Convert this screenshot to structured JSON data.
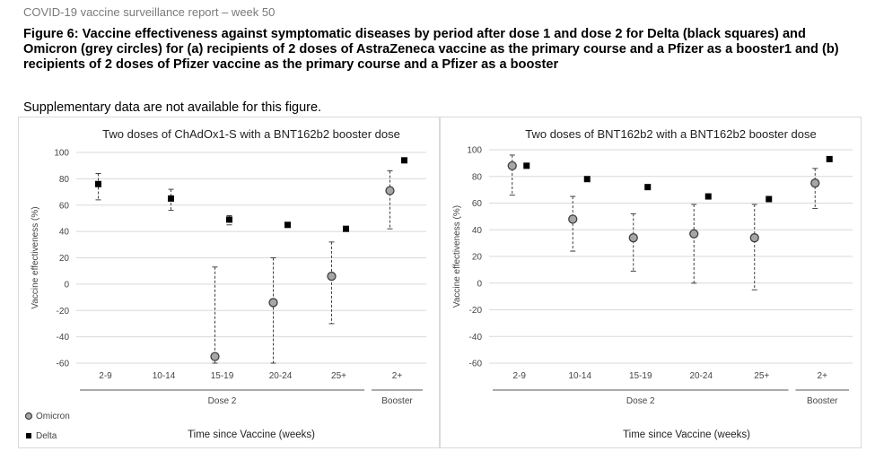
{
  "report_header": "COVID-19 vaccine surveillance report – week 50",
  "figure_title": "Figure 6: Vaccine effectiveness against symptomatic diseases by period after dose 1 and dose 2 for Delta (black squares) and Omicron (grey circles) for (a) recipients of 2 doses of AstraZeneca vaccine as the primary course and a Pfizer as a booster1 and (b) recipients of 2 doses of Pfizer vaccine as the primary course and a Pfizer as a booster",
  "supplementary_note": "Supplementary data are not available for this figure.",
  "colors": {
    "omicron_fill": "#a6a6a6",
    "omicron_stroke": "#404040",
    "delta_fill": "#000000",
    "grid": "#d9d9d9",
    "error_bar": "#404040"
  },
  "chart_data": [
    {
      "type": "scatter",
      "title": "Two doses of ChAdOx1-S with a BNT162b2 booster dose",
      "ylabel": "Vaccine effectiveness (%)",
      "xlabel": "Time since Vaccine (weeks)",
      "ylim": [
        -60,
        100
      ],
      "yticks": [
        -60,
        -40,
        -20,
        0,
        20,
        40,
        60,
        80,
        100
      ],
      "grid": true,
      "categories": [
        "2-9",
        "10-14",
        "15-19",
        "20-24",
        "25+",
        "2+"
      ],
      "groups": [
        {
          "label": "Dose 2",
          "categories": [
            "2-9",
            "10-14",
            "15-19",
            "20-24",
            "25+"
          ]
        },
        {
          "label": "Booster",
          "categories": [
            "2+"
          ]
        }
      ],
      "series": [
        {
          "name": "Omicron",
          "marker": "circle",
          "values": [
            null,
            null,
            -55,
            -14,
            6,
            71
          ],
          "lower": [
            null,
            null,
            -60,
            -60,
            -30,
            42
          ],
          "upper": [
            null,
            null,
            13,
            20,
            32,
            86
          ]
        },
        {
          "name": "Delta",
          "marker": "square",
          "values": [
            76,
            65,
            49,
            45,
            42,
            94
          ],
          "lower": [
            64,
            56,
            45,
            null,
            null,
            null
          ],
          "upper": [
            84,
            72,
            52,
            null,
            null,
            null
          ]
        }
      ],
      "legend": {
        "position": "bottom-left",
        "entries": [
          "Omicron",
          "Delta"
        ]
      }
    },
    {
      "type": "scatter",
      "title": "Two doses of BNT162b2 with a BNT162b2 booster dose",
      "ylabel": "Vaccine effectiveness (%)",
      "xlabel": "Time since Vaccine (weeks)",
      "ylim": [
        -60,
        100
      ],
      "yticks": [
        -60,
        -40,
        -20,
        0,
        20,
        40,
        60,
        80,
        100
      ],
      "grid": true,
      "categories": [
        "2-9",
        "10-14",
        "15-19",
        "20-24",
        "25+",
        "2+"
      ],
      "groups": [
        {
          "label": "Dose 2",
          "categories": [
            "2-9",
            "10-14",
            "15-19",
            "20-24",
            "25+"
          ]
        },
        {
          "label": "Booster",
          "categories": [
            "2+"
          ]
        }
      ],
      "series": [
        {
          "name": "Omicron",
          "marker": "circle",
          "values": [
            88,
            48,
            34,
            37,
            34,
            75
          ],
          "lower": [
            66,
            24,
            9,
            0,
            -5,
            56
          ],
          "upper": [
            96,
            65,
            52,
            59,
            59,
            86
          ]
        },
        {
          "name": "Delta",
          "marker": "square",
          "values": [
            88,
            78,
            72,
            65,
            63,
            93
          ],
          "lower": [
            null,
            null,
            null,
            null,
            null,
            null
          ],
          "upper": [
            null,
            null,
            null,
            null,
            null,
            null
          ]
        }
      ]
    }
  ]
}
